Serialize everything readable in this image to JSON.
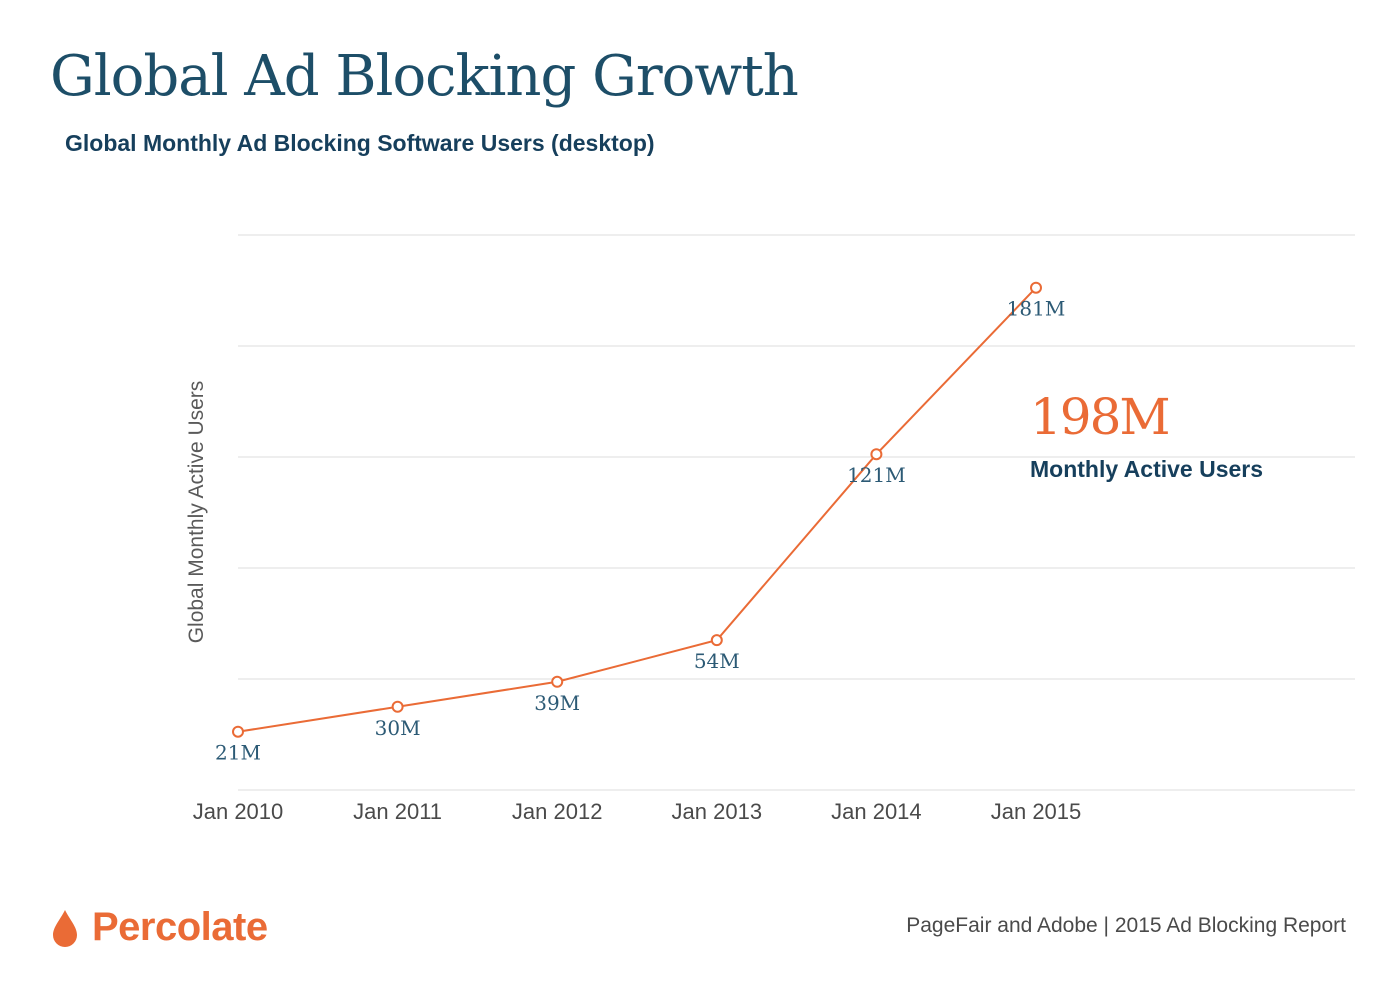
{
  "header": {
    "title": "Global Ad Blocking Growth",
    "subtitle": "Global Monthly Ad Blocking Software Users (desktop)"
  },
  "chart_data": {
    "type": "line",
    "x": [
      "Jan 2010",
      "Jan 2011",
      "Jan 2012",
      "Jan 2013",
      "Jan 2014",
      "Jan 2015"
    ],
    "series": [
      {
        "values": [
          21,
          30,
          39,
          54,
          121,
          181
        ],
        "labels": [
          "21M",
          "30M",
          "39M",
          "54M",
          "121M",
          "181M"
        ]
      }
    ],
    "ylabel": "Global Monthly Active Users",
    "ylim": [
      0,
      200
    ],
    "grid": true,
    "color": "#ea6b36"
  },
  "callout": {
    "value": "198M",
    "label": "Monthly Active Users"
  },
  "footer": {
    "brand": "Percolate",
    "source": "PageFair and Adobe | 2015 Ad Blocking Report"
  },
  "colors": {
    "accent": "#ea6b36",
    "text_dark": "#163f5c",
    "grid": "#dddddd"
  }
}
